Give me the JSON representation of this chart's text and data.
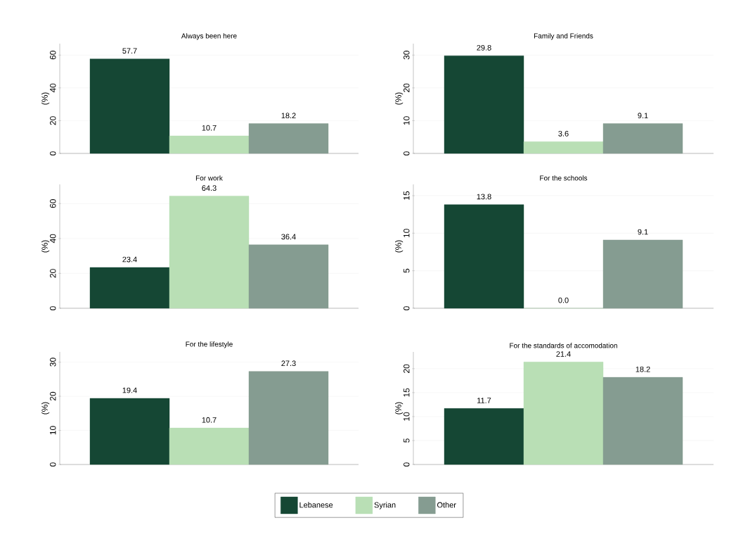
{
  "chart_data": [
    {
      "type": "bar",
      "title": "Always been here",
      "ylabel": "(%)",
      "categories": [
        null
      ],
      "ylim": [
        0,
        67
      ],
      "yticks": [
        0,
        20,
        40,
        60
      ],
      "grid": "y",
      "series": [
        {
          "color": "#154734",
          "values": [
            57.7
          ],
          "value_labels": [
            "57.7"
          ]
        },
        {
          "color": "#b9dfb5",
          "values": [
            10.7
          ],
          "value_labels": [
            "10.7"
          ]
        },
        {
          "color": "#859c91",
          "values": [
            18.2
          ],
          "value_labels": [
            "18.2"
          ]
        }
      ]
    },
    {
      "type": "bar",
      "title": "Family and Friends",
      "ylabel": "(%)",
      "categories": [
        null
      ],
      "ylim": [
        0,
        33.5
      ],
      "yticks": [
        0,
        10,
        20,
        30
      ],
      "grid": "y",
      "series": [
        {
          "color": "#154734",
          "values": [
            29.8
          ],
          "value_labels": [
            "29.8"
          ]
        },
        {
          "color": "#b9dfb5",
          "values": [
            3.6
          ],
          "value_labels": [
            "3.6"
          ]
        },
        {
          "color": "#859c91",
          "values": [
            9.1
          ],
          "value_labels": [
            "9.1"
          ]
        }
      ]
    },
    {
      "type": "bar",
      "title": "For work",
      "ylabel": "(%)",
      "categories": [
        null
      ],
      "ylim": [
        0,
        71
      ],
      "yticks": [
        0,
        20,
        40,
        60
      ],
      "grid": "y",
      "series": [
        {
          "color": "#154734",
          "values": [
            23.4
          ],
          "value_labels": [
            "23.4"
          ]
        },
        {
          "color": "#b9dfb5",
          "values": [
            64.3
          ],
          "value_labels": [
            "64.3"
          ]
        },
        {
          "color": "#859c91",
          "values": [
            36.4
          ],
          "value_labels": [
            "36.4"
          ]
        }
      ]
    },
    {
      "type": "bar",
      "title": "For the schools",
      "ylabel": "(%)",
      "categories": [
        null
      ],
      "ylim": [
        0,
        16.5
      ],
      "yticks": [
        0,
        5,
        10,
        15
      ],
      "grid": "y",
      "series": [
        {
          "color": "#154734",
          "values": [
            13.8
          ],
          "value_labels": [
            "13.8"
          ]
        },
        {
          "color": "#b9dfb5",
          "values": [
            0.0
          ],
          "value_labels": [
            "0.0"
          ]
        },
        {
          "color": "#859c91",
          "values": [
            9.1
          ],
          "value_labels": [
            "9.1"
          ]
        }
      ]
    },
    {
      "type": "bar",
      "title": "For the lifestyle",
      "ylabel": "(%)",
      "categories": [
        null
      ],
      "ylim": [
        0,
        33
      ],
      "yticks": [
        0,
        10,
        20,
        30
      ],
      "grid": "y",
      "series": [
        {
          "color": "#154734",
          "values": [
            19.4
          ],
          "value_labels": [
            "19.4"
          ]
        },
        {
          "color": "#b9dfb5",
          "values": [
            10.7
          ],
          "value_labels": [
            "10.7"
          ]
        },
        {
          "color": "#859c91",
          "values": [
            27.3
          ],
          "value_labels": [
            "27.3"
          ]
        }
      ]
    },
    {
      "type": "bar",
      "title": "For the standards of accomodation",
      "ylabel": "(%)",
      "categories": [
        null
      ],
      "ylim": [
        0,
        23.5
      ],
      "yticks": [
        0,
        5,
        10,
        15,
        20
      ],
      "grid": "y",
      "legend": "bottom",
      "series": [
        {
          "name": "Lebanese",
          "color": "#154734",
          "values": [
            11.7
          ],
          "value_labels": [
            "11.7"
          ]
        },
        {
          "name": "Syrian",
          "color": "#b9dfb5",
          "values": [
            21.4
          ],
          "value_labels": [
            "21.4"
          ]
        },
        {
          "name": "Other",
          "color": "#859c91",
          "values": [
            18.2
          ],
          "value_labels": [
            "18.2"
          ]
        }
      ]
    }
  ]
}
